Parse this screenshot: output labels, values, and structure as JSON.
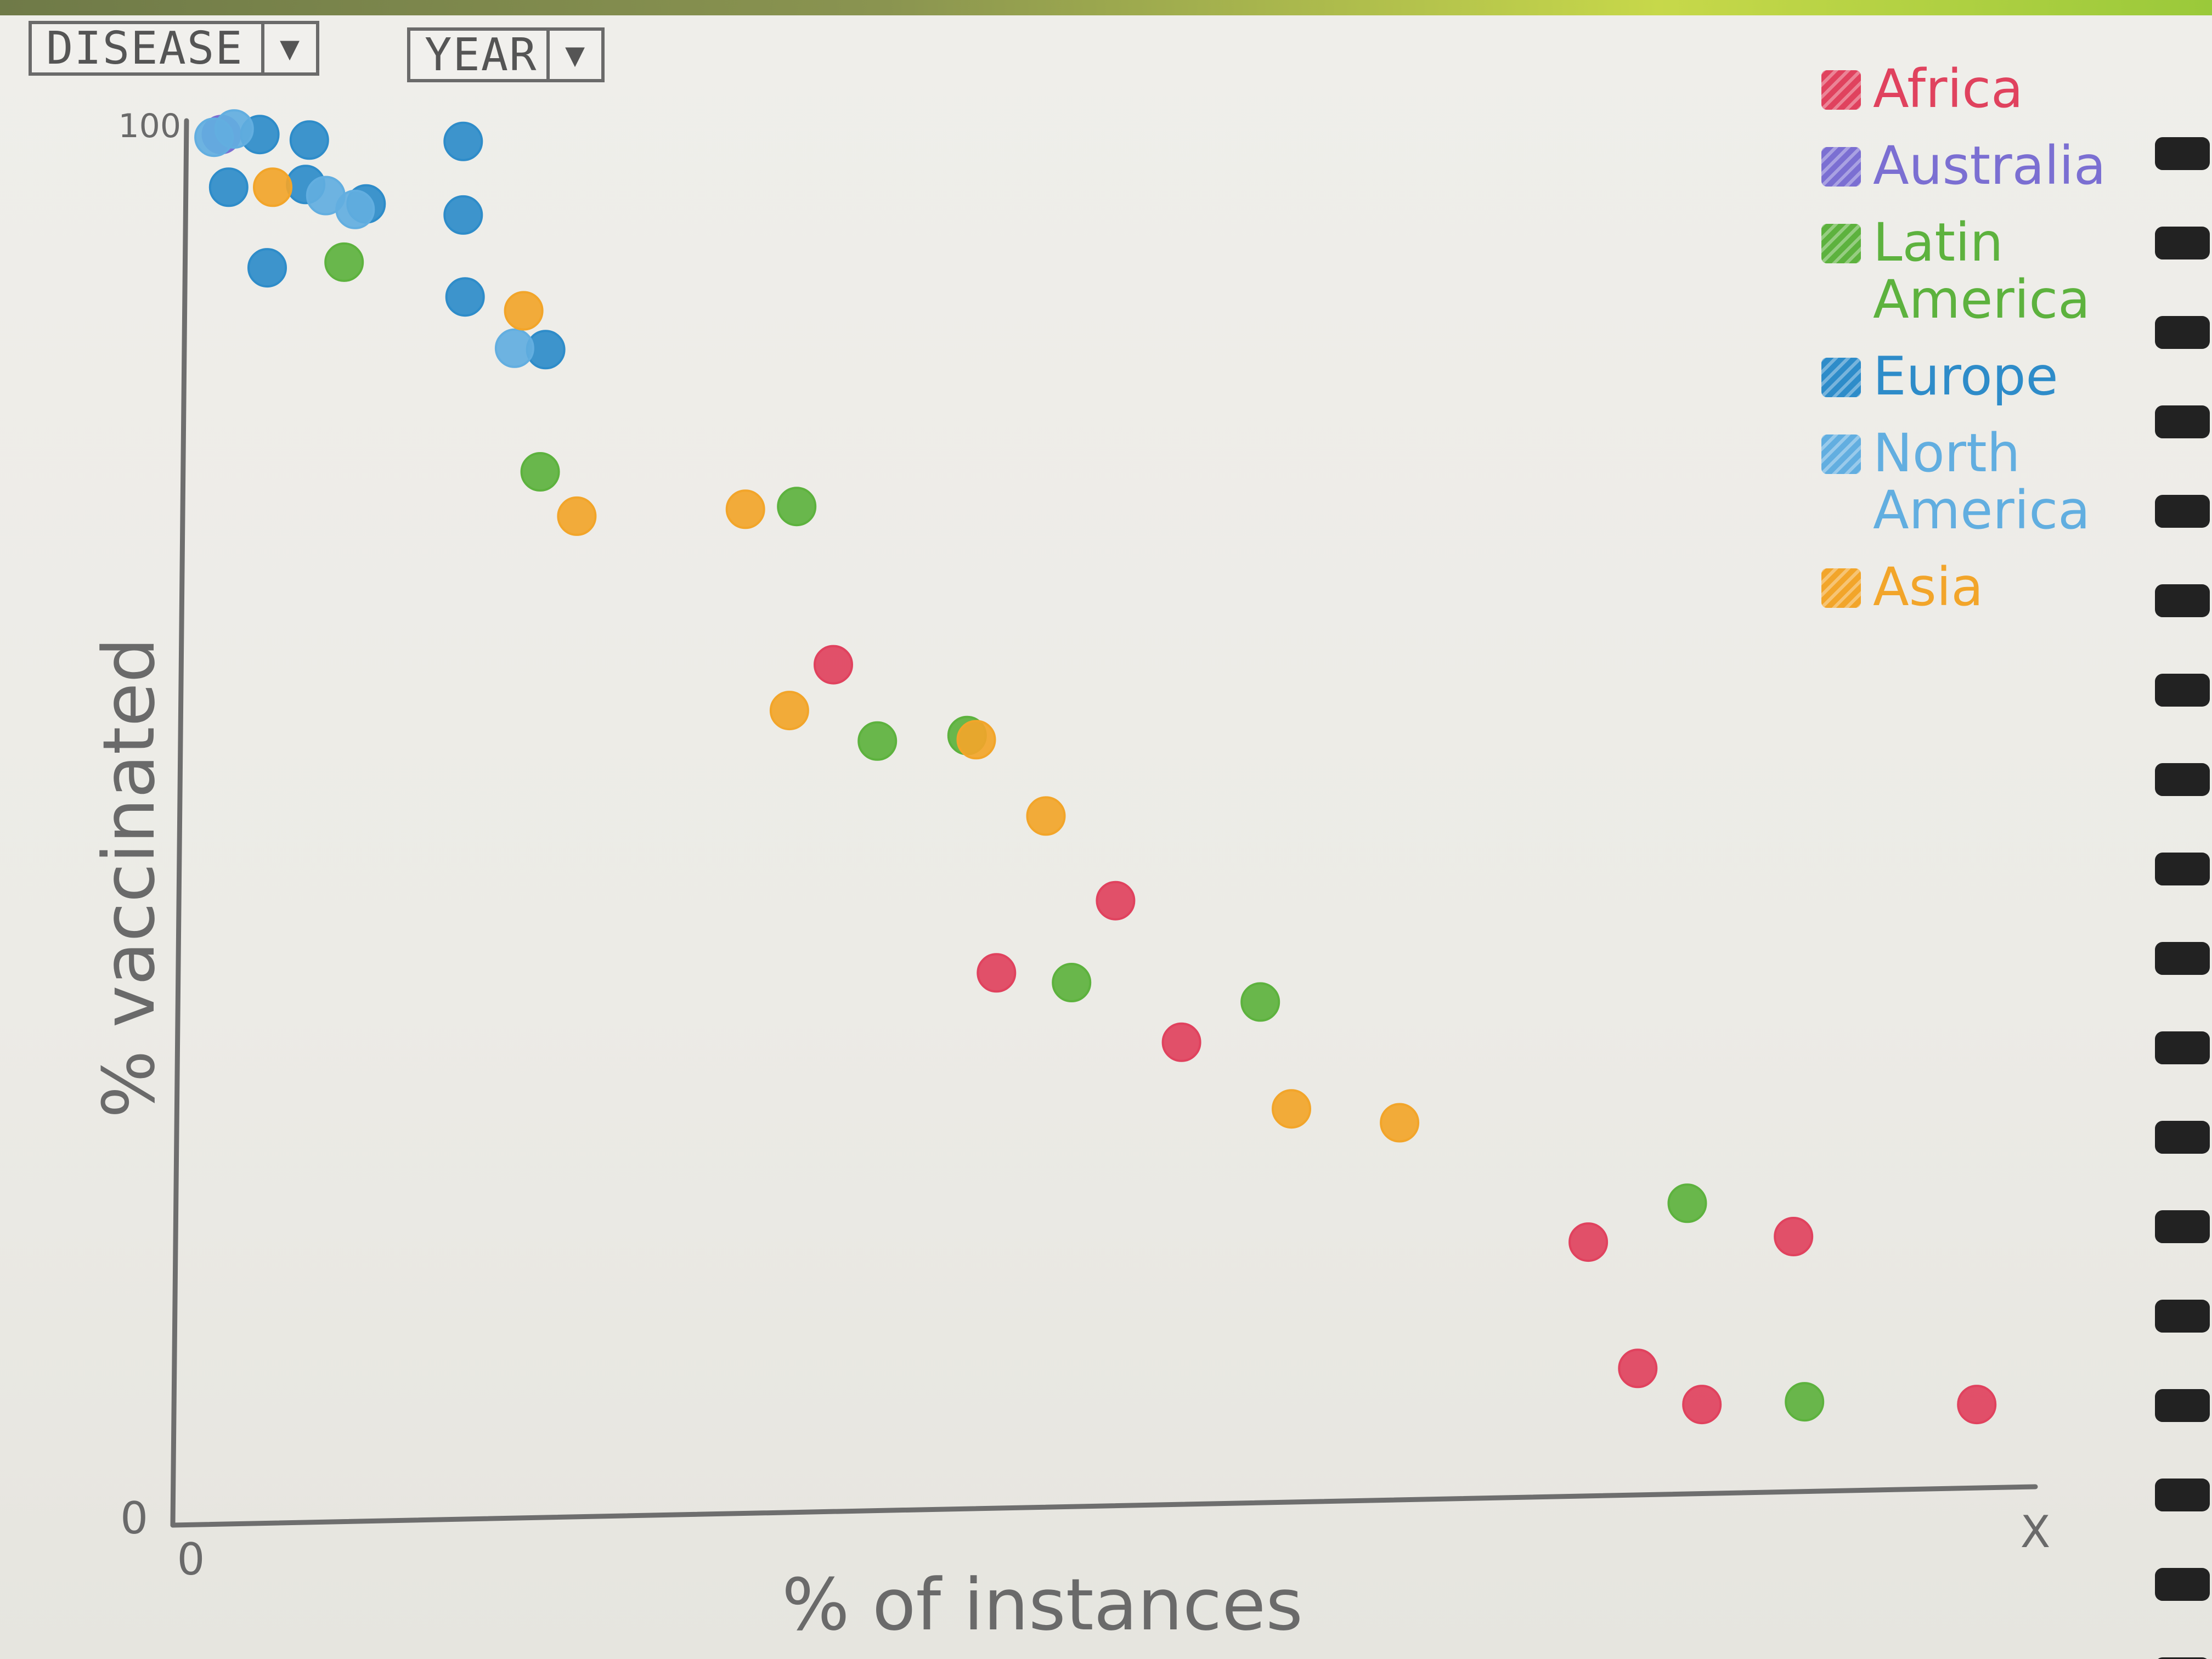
{
  "controls": {
    "disease_label": "DISEASE",
    "year_label": "YEAR"
  },
  "chart_data": {
    "type": "scatter",
    "xlabel": "% of instances",
    "ylabel": "% vaccinated",
    "x_tick_labels": {
      "min": "0",
      "max": "X"
    },
    "y_tick_labels": {
      "min": "0",
      "max": "100"
    },
    "xlim": [
      0,
      100
    ],
    "ylim": [
      0,
      100
    ],
    "grid": false,
    "legend_position": "top-right",
    "series": [
      {
        "name": "Africa",
        "color": "#e0425e",
        "points": [
          [
            35.3,
            61.2
          ],
          [
            50.7,
            44.2
          ],
          [
            44.2,
            39.0
          ],
          [
            54.3,
            34.0
          ],
          [
            76.5,
            19.6
          ],
          [
            87.7,
            20.0
          ],
          [
            79.2,
            10.5
          ],
          [
            82.7,
            7.9
          ],
          [
            97.7,
            7.9
          ]
        ]
      },
      {
        "name": "Australia",
        "color": "#7b6fd2",
        "points": [
          [
            1.9,
            99.4
          ]
        ]
      },
      {
        "name": "Latin America",
        "color": "#5db23e",
        "points": [
          [
            8.6,
            90.2
          ],
          [
            19.3,
            75.1
          ],
          [
            33.3,
            72.6
          ],
          [
            37.7,
            55.7
          ],
          [
            42.6,
            56.1
          ],
          [
            48.3,
            38.3
          ],
          [
            58.6,
            36.9
          ],
          [
            81.9,
            22.4
          ],
          [
            88.3,
            8.1
          ]
        ]
      },
      {
        "name": "Europe",
        "color": "#2e8cc9",
        "points": [
          [
            4.0,
            99.4
          ],
          [
            6.7,
            99.0
          ],
          [
            15.1,
            98.9
          ],
          [
            2.3,
            95.6
          ],
          [
            6.5,
            95.8
          ],
          [
            9.8,
            94.4
          ],
          [
            15.1,
            93.6
          ],
          [
            4.4,
            89.8
          ],
          [
            15.2,
            87.7
          ],
          [
            19.6,
            83.9
          ]
        ]
      },
      {
        "name": "North America",
        "color": "#62aee0",
        "points": [
          [
            1.5,
            99.2
          ],
          [
            2.6,
            99.8
          ],
          [
            7.6,
            95.0
          ],
          [
            9.2,
            94.0
          ],
          [
            17.9,
            84.0
          ]
        ]
      },
      {
        "name": "Asia",
        "color": "#f2a52a",
        "points": [
          [
            4.7,
            95.6
          ],
          [
            18.4,
            86.7
          ],
          [
            21.3,
            71.9
          ],
          [
            30.5,
            72.4
          ],
          [
            43.1,
            55.8
          ],
          [
            32.9,
            57.9
          ],
          [
            46.9,
            50.3
          ],
          [
            60.3,
            29.2
          ],
          [
            66.2,
            28.2
          ]
        ]
      }
    ]
  }
}
